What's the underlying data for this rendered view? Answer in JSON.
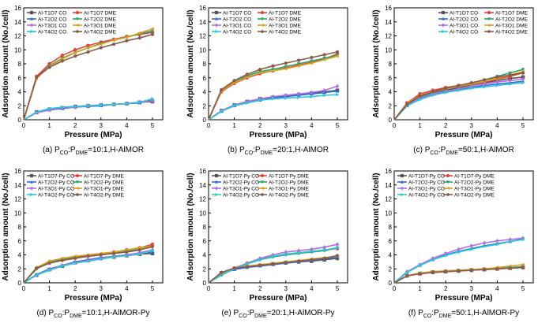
{
  "palette": {
    "T1O7 CO": "#555555",
    "T1O7 DME": "#e8413c",
    "T2O2 CO": "#2f6bd8",
    "T2O2 DME": "#2aa36b",
    "T3O1 CO": "#b06fe0",
    "T3O1 DME": "#d9a020",
    "T4O2 CO": "#29c7d8",
    "T4O2 DME": "#8a5a4a"
  },
  "chart_data": [
    {
      "type": "line",
      "id": "a",
      "title": "(a) P_CO:P_DME=10:1,H-AlMOR",
      "caption": {
        "prefix": "(a) P",
        "sub1": "CO",
        "mid": ":P",
        "sub2": "DME",
        "suffix": "=10:1,H-AlMOR"
      },
      "xlabel": "Pressure (MPa)",
      "ylabel": "Adsorption amount (No./cell)",
      "xlim": [
        0,
        5.4
      ],
      "ylim": [
        0,
        16
      ],
      "xticks": [
        0,
        1,
        2,
        3,
        4,
        5
      ],
      "yticks": [
        0,
        2,
        4,
        6,
        8,
        10,
        12,
        14,
        16
      ],
      "legend_position": "top-left",
      "x": [
        0,
        0.5,
        1,
        1.5,
        2,
        2.5,
        3,
        3.5,
        4,
        4.5,
        5
      ],
      "series": [
        {
          "name": "Al-T1O7 CO",
          "key": "T1O7 CO",
          "values": [
            0,
            1.1,
            1.5,
            1.7,
            1.9,
            2.0,
            2.1,
            2.2,
            2.3,
            2.5,
            2.6
          ]
        },
        {
          "name": "Al-T1O7 DME",
          "key": "T1O7 DME",
          "values": [
            0,
            6.2,
            8.0,
            9.2,
            10.0,
            10.6,
            11.1,
            11.5,
            11.9,
            12.2,
            12.5
          ]
        },
        {
          "name": "Al-T2O2 CO",
          "key": "T2O2 CO",
          "values": [
            0,
            1.0,
            1.4,
            1.6,
            1.8,
            1.9,
            2.0,
            2.2,
            2.3,
            2.4,
            2.9
          ]
        },
        {
          "name": "Al-T2O2 DME",
          "key": "T2O2 DME",
          "values": [
            0,
            6.0,
            7.7,
            8.8,
            9.6,
            10.3,
            10.9,
            11.4,
            11.8,
            12.3,
            12.7
          ]
        },
        {
          "name": "Al-T3O1 CO",
          "key": "T3O1 CO",
          "values": [
            0,
            1.0,
            1.4,
            1.7,
            1.8,
            2.0,
            2.1,
            2.2,
            2.3,
            2.5,
            2.7
          ]
        },
        {
          "name": "Al-T3O1 DME",
          "key": "T3O1 DME",
          "values": [
            0,
            5.9,
            7.6,
            8.7,
            9.6,
            10.3,
            10.8,
            11.4,
            11.8,
            12.4,
            13.0
          ]
        },
        {
          "name": "Al-T4O2 CO",
          "key": "T4O2 CO",
          "values": [
            0,
            1.1,
            1.6,
            1.8,
            1.9,
            2.0,
            2.1,
            2.2,
            2.3,
            2.5,
            3.0
          ]
        },
        {
          "name": "Al-T4O2 DME",
          "key": "T4O2 DME",
          "values": [
            0,
            6.1,
            7.5,
            8.4,
            9.1,
            9.7,
            10.3,
            10.8,
            11.3,
            11.7,
            12.2
          ]
        }
      ]
    },
    {
      "type": "line",
      "id": "b",
      "title": "(b) P_CO:P_DME=20:1,H-AlMOR",
      "caption": {
        "prefix": "(b) P",
        "sub1": "CO",
        "mid": ":P",
        "sub2": "DME",
        "suffix": "=20:1,H-AlMOR"
      },
      "xlabel": "Pressure (MPa)",
      "ylabel": "Adsorption amount (No./cell)",
      "xlim": [
        0,
        5.4
      ],
      "ylim": [
        0,
        16
      ],
      "xticks": [
        0,
        1,
        2,
        3,
        4,
        5
      ],
      "yticks": [
        0,
        2,
        4,
        6,
        8,
        10,
        12,
        14,
        16
      ],
      "legend_position": "top-left",
      "x": [
        0,
        0.5,
        1,
        1.5,
        2,
        2.5,
        3,
        3.5,
        4,
        4.5,
        5
      ],
      "series": [
        {
          "name": "Al-T1O7 CO",
          "key": "T1O7 CO",
          "values": [
            0,
            1.3,
            2.1,
            2.6,
            3.0,
            3.2,
            3.4,
            3.6,
            3.8,
            4.0,
            4.2
          ]
        },
        {
          "name": "Al-T1O7 DME",
          "key": "T1O7 DME",
          "values": [
            0,
            4.0,
            5.2,
            6.0,
            6.6,
            7.0,
            7.4,
            7.8,
            8.2,
            8.7,
            9.4
          ]
        },
        {
          "name": "Al-T2O2 CO",
          "key": "T2O2 CO",
          "values": [
            0,
            1.2,
            2.0,
            2.5,
            2.8,
            3.1,
            3.3,
            3.5,
            3.7,
            3.9,
            4.1
          ]
        },
        {
          "name": "Al-T2O2 DME",
          "key": "T2O2 DME",
          "values": [
            0,
            4.2,
            5.4,
            6.3,
            6.9,
            7.2,
            7.6,
            8.0,
            8.4,
            8.8,
            9.2
          ]
        },
        {
          "name": "Al-T3O1 CO",
          "key": "T3O1 CO",
          "values": [
            0,
            1.3,
            2.1,
            2.6,
            3.0,
            3.3,
            3.5,
            3.7,
            3.9,
            4.2,
            4.8
          ]
        },
        {
          "name": "Al-T3O1 DME",
          "key": "T3O1 DME",
          "values": [
            0,
            4.1,
            5.3,
            6.1,
            6.7,
            7.0,
            7.3,
            7.7,
            8.1,
            8.6,
            9.1
          ]
        },
        {
          "name": "Al-T4O2 CO",
          "key": "T4O2 CO",
          "values": [
            0,
            1.2,
            2.0,
            2.4,
            2.8,
            3.0,
            3.1,
            3.2,
            3.3,
            3.5,
            3.6
          ]
        },
        {
          "name": "Al-T4O2 DME",
          "key": "T4O2 DME",
          "values": [
            0,
            4.3,
            5.6,
            6.5,
            7.2,
            7.7,
            8.1,
            8.5,
            8.9,
            9.3,
            9.7
          ]
        }
      ]
    },
    {
      "type": "line",
      "id": "c",
      "title": "(c) P_CO:P_DME=50:1,H-AlMOR",
      "caption": {
        "prefix": "(c) P",
        "sub1": "CO",
        "mid": ":P",
        "sub2": "DME",
        "suffix": "=50:1,H-AlMOR"
      },
      "xlabel": "Pressure (MPa)",
      "ylabel": "Adsorption amount (No./cell)",
      "xlim": [
        0,
        5.4
      ],
      "ylim": [
        0,
        16
      ],
      "xticks": [
        0,
        1,
        2,
        3,
        4,
        5
      ],
      "yticks": [
        0,
        2,
        4,
        6,
        8,
        10,
        12,
        14,
        16
      ],
      "legend_position": "top-right",
      "x": [
        0,
        0.5,
        1,
        1.5,
        2,
        2.5,
        3,
        3.5,
        4,
        4.5,
        5
      ],
      "series": [
        {
          "name": "Al-T1O7 CO",
          "key": "T1O7 CO",
          "values": [
            0,
            2.2,
            3.2,
            3.8,
            4.2,
            4.6,
            5.0,
            5.3,
            5.6,
            5.9,
            6.1
          ]
        },
        {
          "name": "Al-T1O7 DME",
          "key": "T1O7 DME",
          "values": [
            0,
            2.4,
            3.7,
            4.2,
            4.6,
            4.9,
            5.1,
            5.4,
            5.8,
            6.2,
            6.7
          ]
        },
        {
          "name": "Al-T2O2 CO",
          "key": "T2O2 CO",
          "values": [
            0,
            2.0,
            3.0,
            3.6,
            4.0,
            4.3,
            4.6,
            4.9,
            5.1,
            5.3,
            5.5
          ]
        },
        {
          "name": "Al-T2O2 DME",
          "key": "T2O2 DME",
          "values": [
            0,
            2.1,
            3.3,
            3.9,
            4.4,
            4.8,
            5.2,
            5.7,
            6.2,
            6.7,
            7.2
          ]
        },
        {
          "name": "Al-T3O1 CO",
          "key": "T3O1 CO",
          "values": [
            0,
            2.1,
            3.1,
            3.7,
            4.1,
            4.4,
            4.8,
            5.1,
            5.4,
            5.6,
            5.8
          ]
        },
        {
          "name": "Al-T3O1 DME",
          "key": "T3O1 DME",
          "values": [
            0,
            2.3,
            3.5,
            4.0,
            4.4,
            4.8,
            5.1,
            5.5,
            5.9,
            6.4,
            6.9
          ]
        },
        {
          "name": "Al-T4O2 CO",
          "key": "T4O2 CO",
          "values": [
            0,
            2.0,
            2.9,
            3.5,
            3.9,
            4.2,
            4.5,
            4.7,
            4.9,
            5.1,
            5.3
          ]
        },
        {
          "name": "Al-T4O2 DME",
          "key": "T4O2 DME",
          "values": [
            0,
            2.2,
            3.4,
            4.0,
            4.5,
            4.9,
            5.3,
            5.7,
            6.1,
            6.4,
            6.7
          ]
        }
      ]
    },
    {
      "type": "line",
      "id": "d",
      "title": "(d) P_CO:P_DME=10:1,H-AlMOR-Py",
      "caption": {
        "prefix": "(d) P",
        "sub1": "CO",
        "mid": ":P",
        "sub2": "DME",
        "suffix": "=10:1,H-AlMOR-Py"
      },
      "xlabel": "Pressure (MPa)",
      "ylabel": "Adsorption amount (No./cell)",
      "xlim": [
        0,
        5.4
      ],
      "ylim": [
        0,
        16
      ],
      "xticks": [
        0,
        1,
        2,
        3,
        4,
        5
      ],
      "yticks": [
        0,
        2,
        4,
        6,
        8,
        10,
        12,
        14,
        16
      ],
      "legend_position": "top-left",
      "x": [
        0,
        0.5,
        1,
        1.5,
        2,
        2.5,
        3,
        3.5,
        4,
        4.5,
        5
      ],
      "series": [
        {
          "name": "Al-T1O7-Py CO",
          "key": "T1O7 CO",
          "values": [
            0,
            1.1,
            1.9,
            2.4,
            2.9,
            3.2,
            3.5,
            3.7,
            3.9,
            4.1,
            4.2
          ]
        },
        {
          "name": "Al-T1O7-Py DME",
          "key": "T1O7 DME",
          "values": [
            0,
            2.1,
            3.0,
            3.4,
            3.7,
            3.9,
            4.1,
            4.4,
            4.7,
            5.0,
            5.5
          ]
        },
        {
          "name": "Al-T2O2-Py CO",
          "key": "T2O2 CO",
          "values": [
            0,
            1.2,
            2.0,
            2.5,
            3.0,
            3.3,
            3.6,
            3.8,
            4.0,
            4.2,
            4.4
          ]
        },
        {
          "name": "Al-T2O2-Py DME",
          "key": "T2O2 DME",
          "values": [
            0,
            2.0,
            2.9,
            3.3,
            3.6,
            3.8,
            4.0,
            4.2,
            4.5,
            4.8,
            5.1
          ]
        },
        {
          "name": "Al-T3O1-Py CO",
          "key": "T3O1 CO",
          "values": [
            0,
            1.1,
            1.9,
            2.5,
            2.9,
            3.2,
            3.5,
            3.8,
            4.0,
            4.3,
            4.7
          ]
        },
        {
          "name": "Al-T3O1-Py DME",
          "key": "T3O1 DME",
          "values": [
            0,
            2.2,
            3.1,
            3.5,
            3.8,
            4.0,
            4.2,
            4.4,
            4.7,
            5.0,
            5.3
          ]
        },
        {
          "name": "Al-T4O2-Py CO",
          "key": "T4O2 CO",
          "values": [
            0,
            1.1,
            1.8,
            2.4,
            2.8,
            3.1,
            3.4,
            3.7,
            3.9,
            4.1,
            4.6
          ]
        },
        {
          "name": "Al-T4O2-Py DME",
          "key": "T4O2 DME",
          "values": [
            0,
            2.1,
            2.8,
            3.2,
            3.5,
            3.8,
            4.0,
            4.2,
            4.4,
            4.7,
            5.2
          ]
        }
      ]
    },
    {
      "type": "line",
      "id": "e",
      "title": "(e) P_CO:P_DME=20:1,H-AlMOR-Py",
      "caption": {
        "prefix": "(e) P",
        "sub1": "CO",
        "mid": ":P",
        "sub2": "DME",
        "suffix": "=20:1,H-AlMOR-Py"
      },
      "xlabel": "Pressure (MPa)",
      "ylabel": "Adsorption amount (No./cell)",
      "xlim": [
        0,
        5.4
      ],
      "ylim": [
        0,
        16
      ],
      "xticks": [
        0,
        1,
        2,
        3,
        4,
        5
      ],
      "yticks": [
        0,
        2,
        4,
        6,
        8,
        10,
        12,
        14,
        16
      ],
      "legend_position": "top-left",
      "x": [
        0,
        0.5,
        1,
        1.5,
        2,
        2.5,
        3,
        3.5,
        4,
        4.5,
        5
      ],
      "series": [
        {
          "name": "Al-T1O7-Py CO",
          "key": "T1O7 CO",
          "values": [
            0,
            1.4,
            2.0,
            2.3,
            2.5,
            2.7,
            2.9,
            3.0,
            3.1,
            3.3,
            3.5
          ]
        },
        {
          "name": "Al-T1O7-Py DME",
          "key": "T1O7 DME",
          "values": [
            0,
            1.2,
            2.1,
            2.8,
            3.4,
            3.8,
            4.1,
            4.3,
            4.5,
            4.7,
            4.9
          ]
        },
        {
          "name": "Al-T2O2-Py CO",
          "key": "T2O2 CO",
          "values": [
            0,
            1.3,
            1.9,
            2.2,
            2.4,
            2.6,
            2.8,
            3.0,
            3.2,
            3.4,
            3.7
          ]
        },
        {
          "name": "Al-T2O2-Py DME",
          "key": "T2O2 DME",
          "values": [
            0,
            1.1,
            2.0,
            2.7,
            3.3,
            3.7,
            4.0,
            4.2,
            4.4,
            4.6,
            5.0
          ]
        },
        {
          "name": "Al-T3O1-Py CO",
          "key": "T3O1 CO",
          "values": [
            0,
            1.3,
            2.0,
            2.8,
            3.5,
            4.0,
            4.4,
            4.6,
            4.8,
            5.1,
            5.5
          ]
        },
        {
          "name": "Al-T3O1-Py DME",
          "key": "T3O1 DME",
          "values": [
            0,
            1.4,
            2.1,
            2.4,
            2.6,
            2.8,
            3.0,
            3.2,
            3.4,
            3.6,
            3.8
          ]
        },
        {
          "name": "Al-T4O2-Py CO",
          "key": "T4O2 CO",
          "values": [
            0,
            1.2,
            2.0,
            2.7,
            3.3,
            3.8,
            4.1,
            4.3,
            4.5,
            4.7,
            5.0
          ]
        },
        {
          "name": "Al-T4O2-Py DME",
          "key": "T4O2 DME",
          "values": [
            0,
            1.5,
            2.1,
            2.3,
            2.5,
            2.7,
            2.9,
            3.1,
            3.3,
            3.5,
            3.9
          ]
        }
      ]
    },
    {
      "type": "line",
      "id": "f",
      "title": "(f) P_CO:P_DME=50:1,H-AlMOR-Py",
      "caption": {
        "prefix": "(f) P",
        "sub1": "CO",
        "mid": ":P",
        "sub2": "DME",
        "suffix": "=50:1,H-AlMOR-Py"
      },
      "xlabel": "Pressure (MPa)",
      "ylabel": "Adsorption amount (No./cell)",
      "xlim": [
        0,
        5.4
      ],
      "ylim": [
        0,
        16
      ],
      "xticks": [
        0,
        1,
        2,
        3,
        4,
        5
      ],
      "yticks": [
        0,
        2,
        4,
        6,
        8,
        10,
        12,
        14,
        16
      ],
      "legend_position": "top-left",
      "x": [
        0,
        0.5,
        1,
        1.5,
        2,
        2.5,
        3,
        3.5,
        4,
        4.5,
        5
      ],
      "series": [
        {
          "name": "Al-T1O7-Py CO",
          "key": "T1O7 CO",
          "values": [
            0,
            1.0,
            1.3,
            1.5,
            1.6,
            1.7,
            1.8,
            1.9,
            2.0,
            2.1,
            2.2
          ]
        },
        {
          "name": "Al-T1O7-Py DME",
          "key": "T1O7 DME",
          "values": [
            0,
            1.0,
            1.3,
            1.5,
            1.6,
            1.7,
            1.8,
            1.9,
            2.0,
            2.1,
            2.2
          ]
        },
        {
          "name": "Al-T2O2-Py CO",
          "key": "T2O2 CO",
          "values": [
            0,
            1.5,
            2.5,
            3.3,
            4.0,
            4.5,
            4.9,
            5.3,
            5.6,
            5.9,
            6.3
          ]
        },
        {
          "name": "Al-T2O2-Py DME",
          "key": "T2O2 DME",
          "values": [
            0,
            1.0,
            1.4,
            1.6,
            1.7,
            1.8,
            1.9,
            2.0,
            2.1,
            2.2,
            2.3
          ]
        },
        {
          "name": "Al-T3O1-Py CO",
          "key": "T3O1 CO",
          "values": [
            0,
            1.6,
            2.6,
            3.5,
            4.2,
            4.8,
            5.3,
            5.7,
            6.0,
            6.2,
            6.4
          ]
        },
        {
          "name": "Al-T3O1-Py DME",
          "key": "T3O1 DME",
          "values": [
            0,
            1.0,
            1.4,
            1.6,
            1.7,
            1.8,
            1.9,
            2.0,
            2.2,
            2.4,
            2.6
          ]
        },
        {
          "name": "Al-T4O2-Py CO",
          "key": "T4O2 CO",
          "values": [
            0,
            1.5,
            2.5,
            3.3,
            3.9,
            4.4,
            4.8,
            5.2,
            5.5,
            5.9,
            6.2
          ]
        },
        {
          "name": "Al-T4O2-Py DME",
          "key": "T4O2 DME",
          "values": [
            0,
            1.0,
            1.3,
            1.5,
            1.6,
            1.7,
            1.8,
            1.9,
            2.0,
            2.1,
            2.2
          ]
        }
      ]
    }
  ]
}
